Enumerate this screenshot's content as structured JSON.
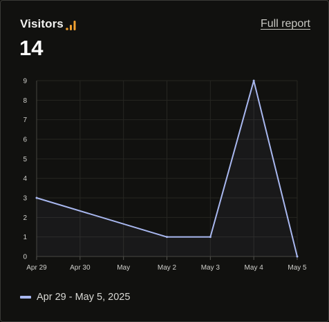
{
  "header": {
    "title": "Visitors",
    "icon": "signal-bars-icon",
    "link_label": "Full report",
    "total": "14"
  },
  "colors": {
    "line": "#a9b8f0",
    "icon": "#f0a030",
    "grid": "#262622"
  },
  "chart_data": {
    "type": "line",
    "categories": [
      "Apr 29",
      "Apr 30",
      "May",
      "May 2",
      "May 3",
      "May 4",
      "May 5"
    ],
    "series": [
      {
        "name": "Apr 29 - May 5, 2025",
        "values": [
          3,
          null,
          null,
          1,
          1,
          9,
          0
        ]
      }
    ],
    "ylim": [
      0,
      9
    ],
    "yticks": [
      0,
      1,
      2,
      3,
      4,
      5,
      6,
      7,
      8,
      9
    ],
    "grid": true,
    "legend_position": "bottom-left"
  }
}
